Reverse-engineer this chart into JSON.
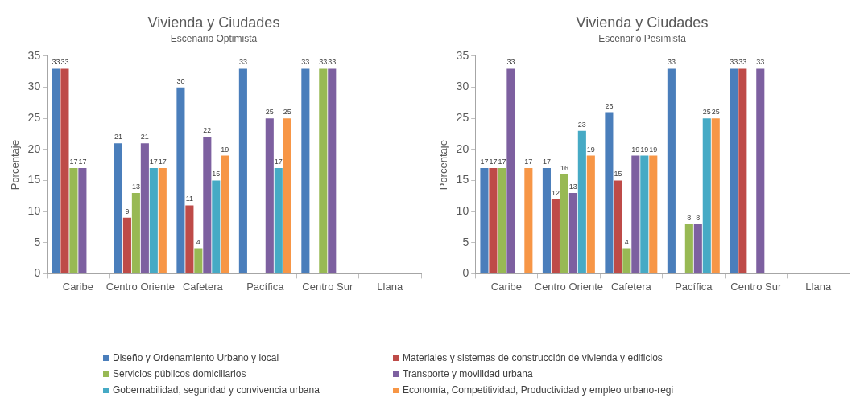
{
  "chart_data": [
    {
      "type": "bar",
      "title": "Vivienda y Ciudades",
      "subtitle": "Escenario Optimista",
      "ylabel": "Porcentaje",
      "categories": [
        "Caribe",
        "Centro Oriente",
        "Cafetera",
        "Pacífica",
        "Centro Sur",
        "Llana"
      ],
      "ylim": [
        0,
        35
      ],
      "yticks": [
        0,
        5,
        10,
        15,
        20,
        25,
        30,
        35
      ],
      "grid": false,
      "data_labels": true,
      "legend": "bottom",
      "series": [
        {
          "name": "Diseño  y Ordenamiento Urbano y local",
          "color": "#4a7ebb",
          "values": [
            33,
            21,
            30,
            33,
            33,
            null
          ]
        },
        {
          "name": "Materiales y sistemas de construcción  de  vivienda y edificios",
          "color": "#be4b48",
          "values": [
            33,
            9,
            11,
            null,
            null,
            null
          ]
        },
        {
          "name": "Servicios públicos domiciliarios",
          "color": "#98b954",
          "values": [
            17,
            13,
            4,
            null,
            33,
            null
          ]
        },
        {
          "name": "Transporte y movilidad urbana",
          "color": "#7d60a0",
          "values": [
            17,
            21,
            22,
            25,
            33,
            null
          ]
        },
        {
          "name": "Gobernabilidad, seguridad y convivencia urbana",
          "color": "#46aac5",
          "values": [
            null,
            17,
            15,
            17,
            null,
            null
          ]
        },
        {
          "name": "Economía, Competitividad, Productividad y empleo urbano-regi",
          "color": "#f79646",
          "values": [
            null,
            17,
            19,
            25,
            null,
            null
          ]
        }
      ]
    },
    {
      "type": "bar",
      "title": "Vivienda y Ciudades",
      "subtitle": "Escenario Pesimista",
      "ylabel": "Porcentaje",
      "categories": [
        "Caribe",
        "Centro Oriente",
        "Cafetera",
        "Pacífica",
        "Centro Sur",
        "Llana"
      ],
      "ylim": [
        0,
        35
      ],
      "yticks": [
        0,
        5,
        10,
        15,
        20,
        25,
        30,
        35
      ],
      "grid": false,
      "data_labels": true,
      "series": [
        {
          "name": "Diseño  y Ordenamiento Urbano y local",
          "color": "#4a7ebb",
          "values": [
            17,
            17,
            26,
            33,
            33,
            null
          ]
        },
        {
          "name": "Materiales y sistemas de construcción  de  vivienda y edificios",
          "color": "#be4b48",
          "values": [
            17,
            12,
            15,
            null,
            33,
            null
          ]
        },
        {
          "name": "Servicios públicos domiciliarios",
          "color": "#98b954",
          "values": [
            17,
            16,
            4,
            8,
            null,
            null
          ]
        },
        {
          "name": "Transporte y movilidad urbana",
          "color": "#7d60a0",
          "values": [
            33,
            13,
            19,
            8,
            33,
            null
          ]
        },
        {
          "name": "Gobernabilidad, seguridad y convivencia urbana",
          "color": "#46aac5",
          "values": [
            null,
            23,
            19,
            25,
            null,
            null
          ]
        },
        {
          "name": "Economía, Competitividad, Productividad y empleo urbano-regi",
          "color": "#f79646",
          "values": [
            17,
            19,
            19,
            25,
            null,
            null
          ]
        }
      ]
    }
  ]
}
